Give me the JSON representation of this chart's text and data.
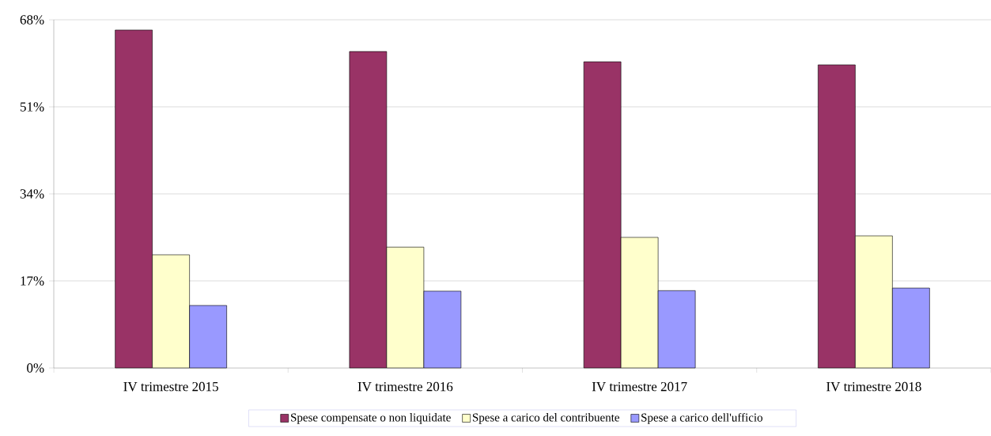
{
  "chart_data": {
    "type": "bar",
    "categories": [
      "IV trimestre 2015",
      "IV trimestre 2016",
      "IV trimestre 2017",
      "IV trimestre 2018"
    ],
    "series": [
      {
        "name": "Spese compensate o non liquidate",
        "color": "#993366",
        "values": [
          66.0,
          61.8,
          59.8,
          59.2
        ]
      },
      {
        "name": "Spese a carico del contribuente",
        "color": "#ffffcc",
        "values": [
          22.1,
          23.6,
          25.5,
          25.8
        ]
      },
      {
        "name": "Spese a carico dell'ufficio",
        "color": "#9999ff",
        "values": [
          12.2,
          15.0,
          15.1,
          15.6
        ]
      }
    ],
    "ylim": [
      0,
      68
    ],
    "yticks": [
      {
        "value": 0,
        "label": "0%"
      },
      {
        "value": 17,
        "label": "17%"
      },
      {
        "value": 34,
        "label": "34%"
      },
      {
        "value": 51,
        "label": "51%"
      },
      {
        "value": 68,
        "label": "68%"
      }
    ],
    "grid": "y",
    "legend": "bottom"
  }
}
